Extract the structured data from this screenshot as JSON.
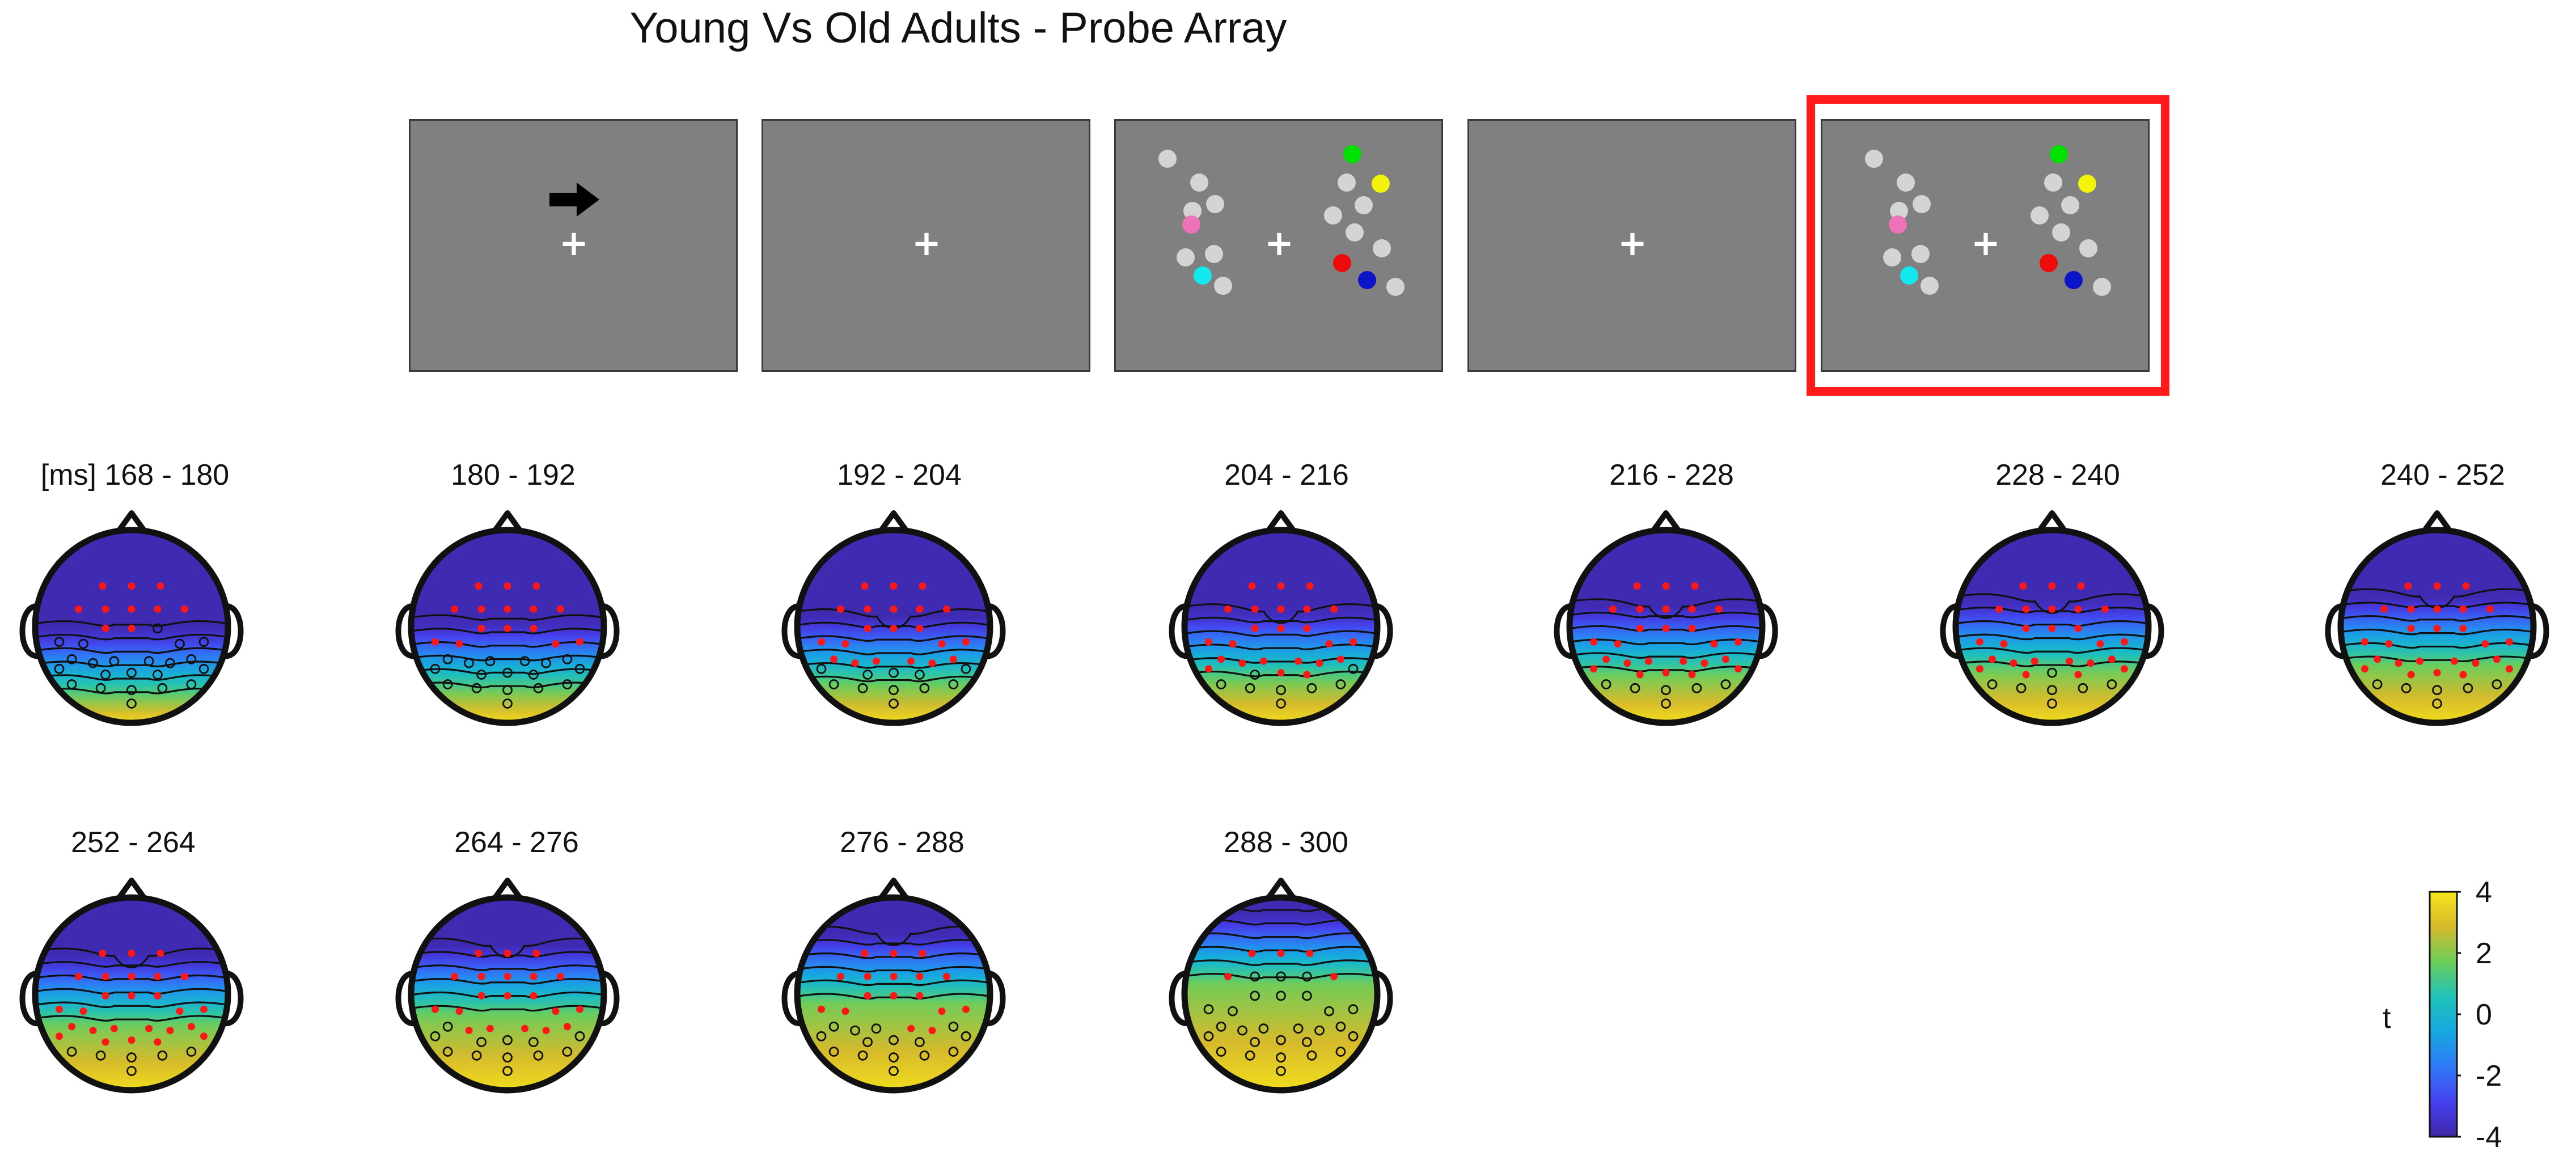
{
  "title": "Young Vs Old Adults - Probe Array",
  "stimulus_panels": [
    {
      "content": "cue",
      "icon": "arrow-right-icon",
      "fixation": "+"
    },
    {
      "content": "fixation",
      "fixation": "+"
    },
    {
      "content": "memory-array",
      "fixation": "+"
    },
    {
      "content": "fixation",
      "fixation": "+"
    },
    {
      "content": "probe-array",
      "fixation": "+",
      "highlighted": true
    }
  ],
  "colors": {
    "panel_gray": "#808080",
    "highlight": "#ff1b1b",
    "disc_gray": "#d4d4d4",
    "disc_green": "#00e000",
    "disc_yellow": "#f2f20a",
    "disc_pink": "#ee72b8",
    "disc_cyan": "#12e8ee",
    "disc_red": "#ee0b0b",
    "disc_blue": "#0c13c8",
    "significant_electrode": "#ff1616",
    "colormap": [
      "#3e26a8",
      "#4640ef",
      "#2f7af6",
      "#16a8e0",
      "#20c2b8",
      "#6ccd5a",
      "#d6ba2c",
      "#f8e61a"
    ]
  },
  "topographies": {
    "unit_label": "[ms]",
    "windows": [
      {
        "label": "168 - 180",
        "state": 0.0,
        "significant": [
          1,
          1,
          1,
          1,
          1,
          1,
          1,
          1,
          1,
          1,
          0,
          0,
          0,
          0,
          0,
          0,
          0,
          0,
          0,
          0,
          0,
          0,
          0,
          0,
          0,
          0,
          0,
          0,
          0,
          0,
          0,
          0
        ]
      },
      {
        "label": "180 - 192",
        "state": 0.06,
        "significant": [
          1,
          1,
          1,
          1,
          1,
          1,
          1,
          1,
          1,
          1,
          1,
          1,
          1,
          1,
          1,
          0,
          0,
          0,
          0,
          0,
          0,
          0,
          0,
          0,
          0,
          0,
          0,
          0,
          0,
          0,
          0,
          0
        ]
      },
      {
        "label": "192 - 204",
        "state": 0.12,
        "significant": [
          1,
          1,
          1,
          1,
          1,
          1,
          1,
          1,
          1,
          1,
          1,
          1,
          1,
          1,
          1,
          1,
          1,
          1,
          1,
          1,
          1,
          0,
          0,
          0,
          0,
          0,
          0,
          0,
          0,
          0,
          0,
          0
        ]
      },
      {
        "label": "204 - 216",
        "state": 0.17,
        "significant": [
          1,
          1,
          1,
          1,
          1,
          1,
          1,
          1,
          1,
          1,
          1,
          1,
          1,
          1,
          1,
          1,
          1,
          1,
          1,
          1,
          1,
          0,
          1,
          1,
          1,
          0,
          0,
          0,
          0,
          0,
          0,
          0
        ]
      },
      {
        "label": "216 - 228",
        "state": 0.22,
        "significant": [
          1,
          1,
          1,
          1,
          1,
          1,
          1,
          1,
          1,
          1,
          1,
          1,
          1,
          1,
          1,
          1,
          1,
          1,
          1,
          1,
          1,
          1,
          1,
          1,
          1,
          1,
          0,
          0,
          0,
          0,
          0,
          0
        ]
      },
      {
        "label": "228 - 240",
        "state": 0.27,
        "significant": [
          1,
          1,
          1,
          1,
          1,
          1,
          1,
          1,
          1,
          1,
          1,
          1,
          1,
          1,
          1,
          1,
          1,
          1,
          1,
          1,
          1,
          1,
          0,
          1,
          1,
          1,
          0,
          0,
          0,
          0,
          0,
          0
        ]
      },
      {
        "label": "240 - 252",
        "state": 0.32,
        "significant": [
          1,
          1,
          1,
          1,
          1,
          1,
          1,
          1,
          1,
          1,
          1,
          1,
          1,
          1,
          1,
          1,
          1,
          1,
          1,
          1,
          1,
          1,
          1,
          1,
          1,
          1,
          0,
          0,
          0,
          0,
          0,
          0
        ]
      },
      {
        "label": "252 - 264",
        "state": 0.4,
        "significant": [
          1,
          1,
          1,
          1,
          1,
          1,
          1,
          1,
          1,
          1,
          1,
          1,
          1,
          1,
          1,
          1,
          1,
          1,
          1,
          1,
          1,
          1,
          1,
          1,
          1,
          1,
          0,
          0,
          0,
          0,
          0,
          0
        ]
      },
      {
        "label": "264 - 276",
        "state": 0.5,
        "significant": [
          1,
          1,
          1,
          1,
          1,
          1,
          1,
          1,
          1,
          1,
          1,
          1,
          1,
          1,
          1,
          0,
          1,
          1,
          1,
          1,
          1,
          0,
          0,
          0,
          0,
          0,
          0,
          0,
          0,
          0,
          0,
          0
        ]
      },
      {
        "label": "276 - 288",
        "state": 0.62,
        "significant": [
          1,
          1,
          1,
          1,
          1,
          1,
          1,
          1,
          1,
          1,
          1,
          1,
          1,
          1,
          1,
          0,
          0,
          0,
          1,
          1,
          0,
          0,
          0,
          0,
          0,
          0,
          0,
          0,
          0,
          0,
          0,
          0
        ]
      },
      {
        "label": "288 - 300",
        "state": 0.82,
        "significant": [
          1,
          1,
          1,
          1,
          0,
          0,
          0,
          1,
          0,
          0,
          0,
          0,
          0,
          0,
          0,
          0,
          0,
          0,
          0,
          0,
          0,
          0,
          0,
          0,
          0,
          0,
          0,
          0,
          0,
          0,
          0,
          0
        ]
      }
    ]
  },
  "colorbar": {
    "label": "t",
    "min": -4,
    "max": 4,
    "ticks": [
      "4",
      "2",
      "0",
      "-2",
      "-4"
    ]
  }
}
